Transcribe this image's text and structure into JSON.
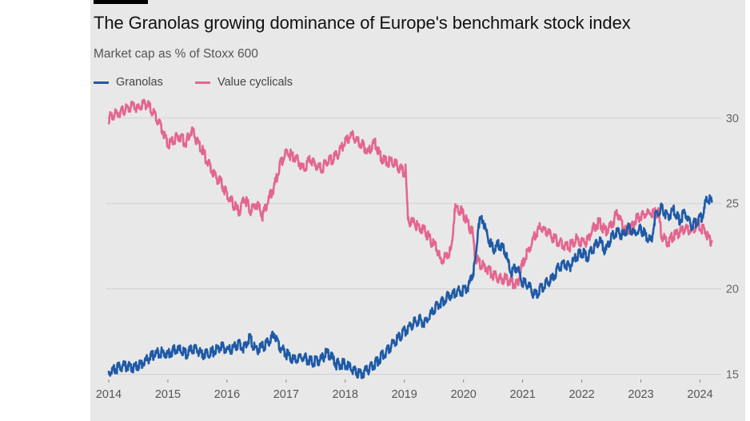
{
  "chart_data": {
    "type": "line",
    "title": "The Granolas growing dominance of Europe's benchmark stock index",
    "subtitle": "Market cap as % of Stoxx 600",
    "xlabel": "",
    "ylabel": "",
    "x_ticks": [
      "2014",
      "2015",
      "2016",
      "2017",
      "2018",
      "2019",
      "2020",
      "2021",
      "2022",
      "2023",
      "2024"
    ],
    "x_range": [
      2014.0,
      2024.25
    ],
    "y_ticks": [
      15,
      20,
      25,
      30
    ],
    "ylim": [
      14.7,
      31.3
    ],
    "y_axis_position": "right",
    "grid": "horizontal",
    "legend_position": "top-left",
    "series": [
      {
        "name": "Granolas",
        "color": "#1f5aa6",
        "points": [
          [
            2014.0,
            15.1
          ],
          [
            2014.1,
            15.3
          ],
          [
            2014.25,
            15.5
          ],
          [
            2014.4,
            15.4
          ],
          [
            2014.55,
            15.6
          ],
          [
            2014.7,
            16.0
          ],
          [
            2014.85,
            16.3
          ],
          [
            2015.0,
            16.2
          ],
          [
            2015.15,
            16.5
          ],
          [
            2015.3,
            16.2
          ],
          [
            2015.45,
            16.5
          ],
          [
            2015.6,
            16.2
          ],
          [
            2015.75,
            16.3
          ],
          [
            2015.9,
            16.6
          ],
          [
            2016.05,
            16.4
          ],
          [
            2016.2,
            16.8
          ],
          [
            2016.3,
            16.5
          ],
          [
            2016.38,
            17.2
          ],
          [
            2016.48,
            16.4
          ],
          [
            2016.6,
            16.6
          ],
          [
            2016.72,
            16.9
          ],
          [
            2016.8,
            17.4
          ],
          [
            2016.9,
            16.6
          ],
          [
            2017.0,
            16.2
          ],
          [
            2017.15,
            15.8
          ],
          [
            2017.3,
            16.0
          ],
          [
            2017.45,
            15.7
          ],
          [
            2017.6,
            15.9
          ],
          [
            2017.7,
            16.3
          ],
          [
            2017.85,
            15.6
          ],
          [
            2018.0,
            15.6
          ],
          [
            2018.12,
            15.3
          ],
          [
            2018.25,
            15.0
          ],
          [
            2018.4,
            15.3
          ],
          [
            2018.5,
            15.6
          ],
          [
            2018.6,
            16.0
          ],
          [
            2018.72,
            16.4
          ],
          [
            2018.85,
            17.0
          ],
          [
            2019.0,
            17.5
          ],
          [
            2019.12,
            17.9
          ],
          [
            2019.25,
            18.2
          ],
          [
            2019.35,
            18.0
          ],
          [
            2019.45,
            18.5
          ],
          [
            2019.55,
            19.0
          ],
          [
            2019.65,
            19.3
          ],
          [
            2019.75,
            19.6
          ],
          [
            2019.85,
            19.8
          ],
          [
            2020.0,
            19.9
          ],
          [
            2020.1,
            20.2
          ],
          [
            2020.2,
            21.5
          ],
          [
            2020.25,
            23.8
          ],
          [
            2020.32,
            24.2
          ],
          [
            2020.4,
            23.2
          ],
          [
            2020.5,
            22.3
          ],
          [
            2020.6,
            22.6
          ],
          [
            2020.7,
            22.2
          ],
          [
            2020.8,
            21.0
          ],
          [
            2020.9,
            21.3
          ],
          [
            2021.0,
            20.4
          ],
          [
            2021.1,
            20.2
          ],
          [
            2021.2,
            19.6
          ],
          [
            2021.3,
            20.0
          ],
          [
            2021.4,
            20.3
          ],
          [
            2021.5,
            20.6
          ],
          [
            2021.6,
            21.2
          ],
          [
            2021.7,
            21.5
          ],
          [
            2021.8,
            21.3
          ],
          [
            2021.9,
            21.9
          ],
          [
            2022.0,
            22.1
          ],
          [
            2022.1,
            21.9
          ],
          [
            2022.2,
            22.4
          ],
          [
            2022.3,
            22.8
          ],
          [
            2022.4,
            22.2
          ],
          [
            2022.5,
            23.0
          ],
          [
            2022.6,
            23.4
          ],
          [
            2022.7,
            23.1
          ],
          [
            2022.8,
            23.6
          ],
          [
            2022.9,
            23.2
          ],
          [
            2023.0,
            23.5
          ],
          [
            2023.1,
            23.0
          ],
          [
            2023.18,
            22.8
          ],
          [
            2023.25,
            24.4
          ],
          [
            2023.35,
            24.7
          ],
          [
            2023.45,
            24.2
          ],
          [
            2023.55,
            24.6
          ],
          [
            2023.65,
            24.0
          ],
          [
            2023.75,
            24.5
          ],
          [
            2023.85,
            23.7
          ],
          [
            2023.95,
            23.9
          ],
          [
            2024.05,
            24.3
          ],
          [
            2024.12,
            25.4
          ],
          [
            2024.2,
            25.1
          ]
        ]
      },
      {
        "name": "Value cyclicals",
        "color": "#e3668f",
        "points": [
          [
            2014.0,
            30.0
          ],
          [
            2014.1,
            30.2
          ],
          [
            2014.2,
            30.4
          ],
          [
            2014.3,
            30.5
          ],
          [
            2014.4,
            30.7
          ],
          [
            2014.5,
            30.5
          ],
          [
            2014.6,
            30.9
          ],
          [
            2014.7,
            30.6
          ],
          [
            2014.8,
            30.1
          ],
          [
            2014.9,
            29.4
          ],
          [
            2015.0,
            28.4
          ],
          [
            2015.1,
            28.7
          ],
          [
            2015.2,
            29.0
          ],
          [
            2015.3,
            28.5
          ],
          [
            2015.4,
            29.3
          ],
          [
            2015.5,
            28.6
          ],
          [
            2015.6,
            28.0
          ],
          [
            2015.7,
            27.2
          ],
          [
            2015.8,
            26.6
          ],
          [
            2015.9,
            26.2
          ],
          [
            2016.0,
            25.5
          ],
          [
            2016.1,
            25.0
          ],
          [
            2016.2,
            24.5
          ],
          [
            2016.3,
            25.3
          ],
          [
            2016.4,
            24.6
          ],
          [
            2016.5,
            25.0
          ],
          [
            2016.6,
            24.3
          ],
          [
            2016.7,
            25.2
          ],
          [
            2016.8,
            26.0
          ],
          [
            2016.9,
            27.3
          ],
          [
            2017.0,
            28.0
          ],
          [
            2017.1,
            27.8
          ],
          [
            2017.2,
            27.5
          ],
          [
            2017.3,
            27.0
          ],
          [
            2017.4,
            27.6
          ],
          [
            2017.5,
            27.3
          ],
          [
            2017.6,
            27.0
          ],
          [
            2017.7,
            27.5
          ],
          [
            2017.8,
            27.6
          ],
          [
            2017.9,
            28.0
          ],
          [
            2018.0,
            28.6
          ],
          [
            2018.1,
            29.0
          ],
          [
            2018.2,
            28.7
          ],
          [
            2018.3,
            28.4
          ],
          [
            2018.4,
            28.0
          ],
          [
            2018.5,
            28.6
          ],
          [
            2018.6,
            27.7
          ],
          [
            2018.7,
            27.4
          ],
          [
            2018.8,
            27.5
          ],
          [
            2018.9,
            27.1
          ],
          [
            2019.0,
            26.8
          ],
          [
            2019.02,
            27.1
          ],
          [
            2019.06,
            24.0
          ],
          [
            2019.15,
            23.9
          ],
          [
            2019.25,
            23.6
          ],
          [
            2019.35,
            23.4
          ],
          [
            2019.45,
            22.8
          ],
          [
            2019.55,
            22.4
          ],
          [
            2019.62,
            21.5
          ],
          [
            2019.7,
            21.9
          ],
          [
            2019.8,
            22.3
          ],
          [
            2019.85,
            24.7
          ],
          [
            2019.95,
            24.6
          ],
          [
            2020.05,
            24.0
          ],
          [
            2020.15,
            23.3
          ],
          [
            2020.2,
            21.8
          ],
          [
            2020.3,
            21.4
          ],
          [
            2020.4,
            21.2
          ],
          [
            2020.5,
            20.8
          ],
          [
            2020.6,
            20.6
          ],
          [
            2020.7,
            20.6
          ],
          [
            2020.8,
            20.4
          ],
          [
            2020.9,
            20.2
          ],
          [
            2021.0,
            21.5
          ],
          [
            2021.1,
            22.3
          ],
          [
            2021.2,
            23.1
          ],
          [
            2021.3,
            23.6
          ],
          [
            2021.4,
            23.4
          ],
          [
            2021.5,
            23.0
          ],
          [
            2021.6,
            22.8
          ],
          [
            2021.7,
            22.6
          ],
          [
            2021.8,
            22.5
          ],
          [
            2021.9,
            22.9
          ],
          [
            2022.0,
            22.7
          ],
          [
            2022.1,
            22.8
          ],
          [
            2022.2,
            23.6
          ],
          [
            2022.3,
            23.9
          ],
          [
            2022.4,
            23.4
          ],
          [
            2022.5,
            23.7
          ],
          [
            2022.6,
            24.5
          ],
          [
            2022.7,
            23.6
          ],
          [
            2022.8,
            23.4
          ],
          [
            2022.9,
            24.0
          ],
          [
            2023.0,
            24.3
          ],
          [
            2023.1,
            24.4
          ],
          [
            2023.2,
            24.5
          ],
          [
            2023.3,
            24.4
          ],
          [
            2023.35,
            23.1
          ],
          [
            2023.45,
            22.7
          ],
          [
            2023.55,
            23.1
          ],
          [
            2023.65,
            23.3
          ],
          [
            2023.75,
            23.5
          ],
          [
            2023.85,
            23.4
          ],
          [
            2023.95,
            23.8
          ],
          [
            2024.05,
            23.5
          ],
          [
            2024.1,
            23.3
          ],
          [
            2024.15,
            22.9
          ],
          [
            2024.2,
            22.8
          ]
        ]
      }
    ]
  }
}
